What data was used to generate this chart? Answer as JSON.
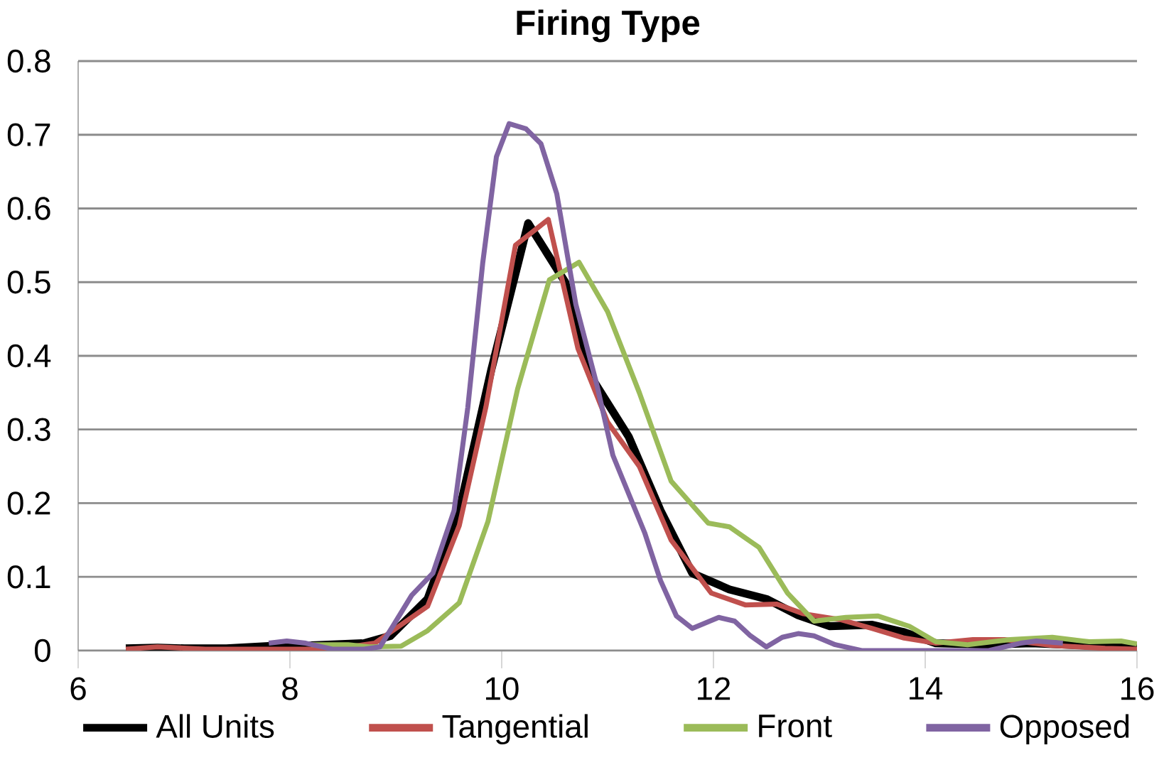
{
  "chart_data": {
    "type": "line",
    "title": "Firing Type",
    "xlim": [
      6,
      16
    ],
    "xticks": [
      6,
      8,
      10,
      12,
      14,
      16
    ],
    "ylim": [
      0,
      0.8
    ],
    "yticks": [
      0,
      0.1,
      0.2,
      0.3,
      0.4,
      0.5,
      0.6,
      0.7,
      0.8
    ],
    "grid": "y",
    "legend": "bottom",
    "marker": "none",
    "line_style": "solid",
    "series": [
      {
        "name": "All  Units",
        "color": "#000000",
        "x": [
          6.45,
          6.75,
          7.0,
          7.4,
          7.8,
          8.2,
          8.7,
          8.95,
          9.3,
          9.6,
          9.9,
          10.25,
          10.6,
          10.85,
          11.2,
          11.5,
          11.8,
          12.15,
          12.5,
          12.8,
          13.1,
          13.5,
          13.8,
          14.1,
          14.6,
          15.0,
          15.5,
          15.9,
          16
        ],
        "values": [
          0.003,
          0.004,
          0.003,
          0.003,
          0.006,
          0.007,
          0.01,
          0.02,
          0.07,
          0.19,
          0.38,
          0.58,
          0.5,
          0.37,
          0.29,
          0.19,
          0.105,
          0.083,
          0.07,
          0.048,
          0.033,
          0.035,
          0.025,
          0.01,
          0.008,
          0.01,
          0.007,
          0.005,
          0.003
        ]
      },
      {
        "name": "Tangential",
        "color": "#c0504d",
        "x": [
          6.45,
          6.75,
          7.2,
          7.8,
          8.4,
          8.8,
          9.3,
          9.6,
          9.85,
          10.13,
          10.44,
          10.72,
          11.0,
          11.3,
          11.6,
          11.98,
          12.3,
          12.6,
          12.85,
          13.2,
          13.5,
          13.8,
          14.1,
          14.45,
          14.75,
          15.2,
          15.7,
          16
        ],
        "values": [
          0.002,
          0.005,
          0.002,
          0.002,
          0.002,
          0.01,
          0.06,
          0.17,
          0.33,
          0.55,
          0.585,
          0.41,
          0.31,
          0.25,
          0.15,
          0.078,
          0.062,
          0.063,
          0.05,
          0.042,
          0.03,
          0.017,
          0.01,
          0.015,
          0.015,
          0.007,
          0.003,
          0.002
        ]
      },
      {
        "name": "Front",
        "color": "#9bbb59",
        "x": [
          8.2,
          8.55,
          8.75,
          9.05,
          9.3,
          9.6,
          9.87,
          10.15,
          10.45,
          10.73,
          11.0,
          11.3,
          11.6,
          11.95,
          12.15,
          12.43,
          12.7,
          12.95,
          13.25,
          13.55,
          13.85,
          14.1,
          14.4,
          14.8,
          15.2,
          15.55,
          15.85,
          16
        ],
        "values": [
          0.008,
          0.008,
          0.005,
          0.006,
          0.027,
          0.065,
          0.175,
          0.355,
          0.503,
          0.527,
          0.46,
          0.35,
          0.23,
          0.173,
          0.168,
          0.14,
          0.078,
          0.04,
          0.045,
          0.047,
          0.033,
          0.012,
          0.008,
          0.015,
          0.018,
          0.012,
          0.013,
          0.009
        ]
      },
      {
        "name": "Opposed",
        "color": "#8064a2",
        "x": [
          7.8,
          7.97,
          8.15,
          8.4,
          8.7,
          8.85,
          8.98,
          9.15,
          9.35,
          9.55,
          9.68,
          9.82,
          9.95,
          10.07,
          10.23,
          10.37,
          10.52,
          10.7,
          10.9,
          11.05,
          11.35,
          11.5,
          11.65,
          11.8,
          12.05,
          12.2,
          12.35,
          12.5,
          12.65,
          12.8,
          12.95,
          13.15,
          13.4,
          14.0,
          14.6,
          14.9,
          15.05,
          15.3
        ],
        "values": [
          0.01,
          0.013,
          0.01,
          0.002,
          0.002,
          0.005,
          0.035,
          0.075,
          0.105,
          0.19,
          0.33,
          0.525,
          0.67,
          0.715,
          0.708,
          0.688,
          0.62,
          0.47,
          0.36,
          0.265,
          0.16,
          0.095,
          0.047,
          0.03,
          0.045,
          0.04,
          0.02,
          0.005,
          0.018,
          0.023,
          0.02,
          0.008,
          0.0,
          0.0,
          0.0,
          0.01,
          0.013,
          0.01
        ]
      }
    ]
  }
}
